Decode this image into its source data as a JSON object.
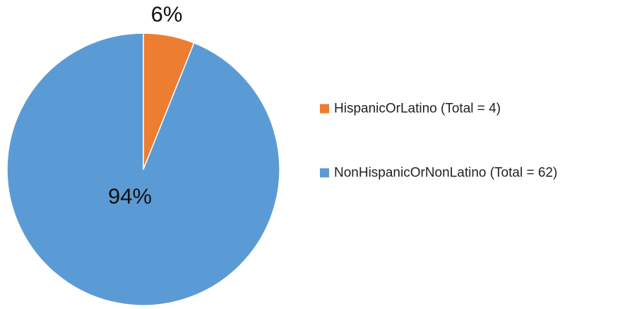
{
  "chart_data": {
    "type": "pie",
    "title": "",
    "start_angle_deg": 90,
    "direction": "clockwise",
    "legend": {
      "placement": "right"
    },
    "slices": [
      {
        "label": "HispanicOrLatino (Total = 4)",
        "value": 4,
        "percent_label": "6%",
        "color": "#ED7D31"
      },
      {
        "label": "NonHispanicOrNonLatino (Total = 62)",
        "value": 62,
        "percent_label": "94%",
        "color": "#5B9BD5"
      }
    ]
  }
}
